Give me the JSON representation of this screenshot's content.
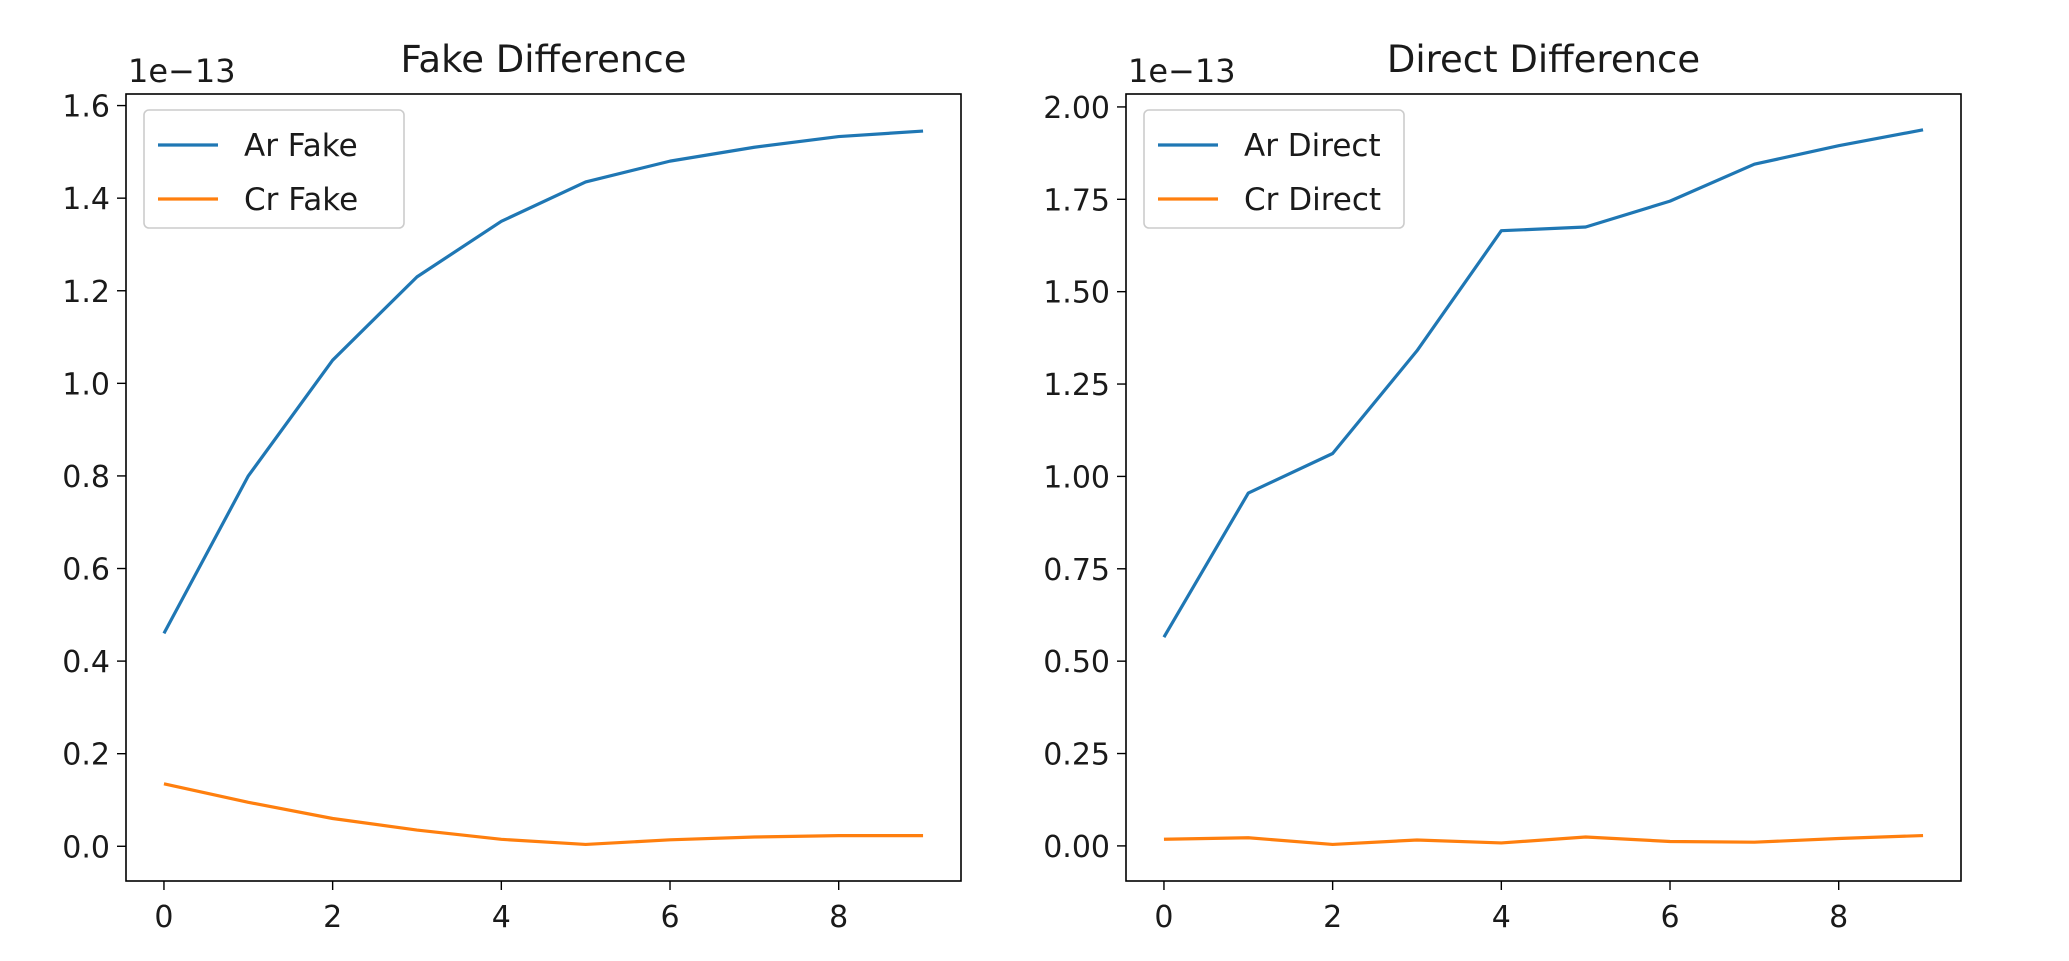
{
  "chart_data": [
    {
      "type": "line",
      "title": "Fake Difference",
      "y_offset_label": "1e−13",
      "x": [
        0,
        1,
        2,
        3,
        4,
        5,
        6,
        7,
        8,
        9
      ],
      "xlim": [
        -0.45,
        9.45
      ],
      "ylim": [
        -0.075,
        1.625
      ],
      "xticks": [
        0,
        2,
        4,
        6,
        8
      ],
      "xtick_labels": [
        "0",
        "2",
        "4",
        "6",
        "8"
      ],
      "yticks": [
        0.0,
        0.2,
        0.4,
        0.6,
        0.8,
        1.0,
        1.2,
        1.4,
        1.6
      ],
      "ytick_labels": [
        "0.0",
        "0.2",
        "0.4",
        "0.6",
        "0.8",
        "1.0",
        "1.2",
        "1.4",
        "1.6"
      ],
      "grid": false,
      "legend_position": "top-left",
      "series": [
        {
          "name": "Ar Fake",
          "color": "#1f77b4",
          "values": [
            0.46,
            0.8,
            1.05,
            1.23,
            1.35,
            1.435,
            1.48,
            1.51,
            1.533,
            1.545
          ]
        },
        {
          "name": "Cr Fake",
          "color": "#ff7f0e",
          "values": [
            0.135,
            0.095,
            0.06,
            0.035,
            0.015,
            0.004,
            0.014,
            0.02,
            0.023,
            0.023
          ]
        }
      ]
    },
    {
      "type": "line",
      "title": "Direct Difference",
      "y_offset_label": "1e−13",
      "x": [
        0,
        1,
        2,
        3,
        4,
        5,
        6,
        7,
        8,
        9
      ],
      "xlim": [
        -0.45,
        9.45
      ],
      "ylim": [
        -0.095,
        2.035
      ],
      "xticks": [
        0,
        2,
        4,
        6,
        8
      ],
      "xtick_labels": [
        "0",
        "2",
        "4",
        "6",
        "8"
      ],
      "yticks": [
        0.0,
        0.25,
        0.5,
        0.75,
        1.0,
        1.25,
        1.5,
        1.75,
        2.0
      ],
      "ytick_labels": [
        "0.00",
        "0.25",
        "0.50",
        "0.75",
        "1.00",
        "1.25",
        "1.50",
        "1.75",
        "2.00"
      ],
      "grid": false,
      "legend_position": "top-left",
      "series": [
        {
          "name": "Ar Direct",
          "color": "#1f77b4",
          "values": [
            0.565,
            0.955,
            1.062,
            1.34,
            1.665,
            1.675,
            1.745,
            1.845,
            1.895,
            1.938
          ]
        },
        {
          "name": "Cr Direct",
          "color": "#ff7f0e",
          "values": [
            0.018,
            0.022,
            0.004,
            0.016,
            0.008,
            0.024,
            0.012,
            0.01,
            0.02,
            0.028
          ]
        }
      ]
    }
  ]
}
